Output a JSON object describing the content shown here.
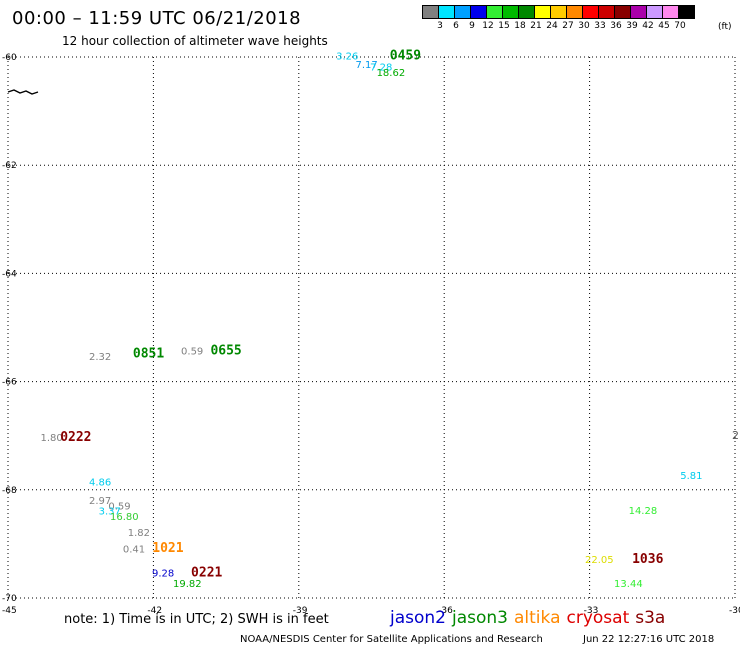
{
  "title": "00:00 – 11:59 UTC 06/21/2018",
  "subtitle": "12 hour collection of altimeter wave heights",
  "legend": {
    "unit": "(ft)",
    "bins": [
      {
        "label": "3",
        "color": "#808080"
      },
      {
        "label": "6",
        "color": "#00e5ff"
      },
      {
        "label": "9",
        "color": "#00a0ff"
      },
      {
        "label": "12",
        "color": "#0000ee"
      },
      {
        "label": "15",
        "color": "#33ee33"
      },
      {
        "label": "18",
        "color": "#00bb00"
      },
      {
        "label": "21",
        "color": "#008800"
      },
      {
        "label": "24",
        "color": "#ffff00"
      },
      {
        "label": "27",
        "color": "#ffcc00"
      },
      {
        "label": "30",
        "color": "#ff8800"
      },
      {
        "label": "33",
        "color": "#ff0000"
      },
      {
        "label": "36",
        "color": "#cc0000"
      },
      {
        "label": "39",
        "color": "#880000"
      },
      {
        "label": "42",
        "color": "#aa00aa"
      },
      {
        "label": "45",
        "color": "#cc99ff"
      },
      {
        "label": "70",
        "color": "#ff88ee"
      },
      {
        "label": "",
        "color": "#000000"
      }
    ]
  },
  "footer": {
    "note": "note: 1) Time is in UTC; 2) SWH is in feet",
    "missions": [
      {
        "name": "jason2",
        "color": "#0000cc"
      },
      {
        "name": "jason3",
        "color": "#008800"
      },
      {
        "name": "altika",
        "color": "#ff8800"
      },
      {
        "name": "cryosat",
        "color": "#dd0000"
      },
      {
        "name": "s3a",
        "color": "#880000"
      }
    ],
    "credit": "NOAA/NESDIS Center for Satellite Applications and Research",
    "timestamp": "Jun 22 12:27:16 UTC 2018"
  },
  "edge_label": "2",
  "chart_data": {
    "type": "scatter",
    "title": "00:00 – 11:59 UTC 06/21/2018",
    "subtitle": "12 hour collection of altimeter wave heights",
    "xlim": [
      -45,
      -30
    ],
    "ylim": [
      -70,
      -60
    ],
    "x_ticks": [
      {
        "value": -45,
        "label": "-45"
      },
      {
        "value": -42,
        "label": "-42"
      },
      {
        "value": -39,
        "label": "-39"
      },
      {
        "value": -36,
        "label": "-36"
      },
      {
        "value": -33,
        "label": "-33"
      },
      {
        "value": -30,
        "label": "-30"
      }
    ],
    "y_ticks": [
      {
        "value": -60,
        "label": "-60"
      },
      {
        "value": -62,
        "label": "-62"
      },
      {
        "value": -64,
        "label": "-64"
      },
      {
        "value": -66,
        "label": "-66"
      },
      {
        "value": -68,
        "label": "-68"
      },
      {
        "value": -70,
        "label": "-70"
      }
    ],
    "grid": true,
    "wave_heights": [
      {
        "x": -38.0,
        "y": -60.05,
        "value": "3.26",
        "color": "#00ccee"
      },
      {
        "x": -37.6,
        "y": -60.2,
        "value": "7.17",
        "color": "#0099ee"
      },
      {
        "x": -37.3,
        "y": -60.25,
        "value": "7.28",
        "color": "#00ccee"
      },
      {
        "x": -37.1,
        "y": -60.35,
        "value": "18.62",
        "color": "#00aa00"
      },
      {
        "x": -43.1,
        "y": -65.6,
        "value": "2.32",
        "color": "#808080"
      },
      {
        "x": -41.2,
        "y": -65.5,
        "value": "0.59",
        "color": "#808080"
      },
      {
        "x": -44.1,
        "y": -67.1,
        "value": "1.80",
        "color": "#808080"
      },
      {
        "x": -43.1,
        "y": -67.92,
        "value": "4.86",
        "color": "#00ccee"
      },
      {
        "x": -43.1,
        "y": -68.26,
        "value": "2.97",
        "color": "#808080"
      },
      {
        "x": -42.7,
        "y": -68.36,
        "value": "0.59",
        "color": "#808080"
      },
      {
        "x": -42.9,
        "y": -68.46,
        "value": "3.37",
        "color": "#00ccee"
      },
      {
        "x": -42.6,
        "y": -68.56,
        "value": "16.80",
        "color": "#33cc33"
      },
      {
        "x": -42.3,
        "y": -68.85,
        "value": "1.82",
        "color": "#808080"
      },
      {
        "x": -42.4,
        "y": -69.16,
        "value": "0.41",
        "color": "#808080"
      },
      {
        "x": -41.8,
        "y": -69.6,
        "value": "9.28",
        "color": "#0000cc"
      },
      {
        "x": -41.3,
        "y": -69.8,
        "value": "19.82",
        "color": "#00aa00"
      },
      {
        "x": -30.9,
        "y": -67.8,
        "value": "5.81",
        "color": "#00ccee"
      },
      {
        "x": -31.9,
        "y": -68.45,
        "value": "14.28",
        "color": "#33ee33"
      },
      {
        "x": -32.8,
        "y": -69.35,
        "value": "22.05",
        "color": "#dddd00"
      },
      {
        "x": -32.2,
        "y": -69.8,
        "value": "13.44",
        "color": "#33ee33"
      }
    ],
    "pass_times": [
      {
        "x": -36.8,
        "y": -60.05,
        "label": "0459",
        "color": "#008800"
      },
      {
        "x": -42.1,
        "y": -65.55,
        "label": "0851",
        "color": "#008800"
      },
      {
        "x": -40.5,
        "y": -65.5,
        "label": "0655",
        "color": "#008800"
      },
      {
        "x": -43.6,
        "y": -67.1,
        "label": "0222",
        "color": "#880000"
      },
      {
        "x": -41.7,
        "y": -69.15,
        "label": "1021",
        "color": "#ff8800"
      },
      {
        "x": -40.9,
        "y": -69.6,
        "label": "0221",
        "color": "#880000"
      },
      {
        "x": -31.8,
        "y": -69.35,
        "label": "1036",
        "color": "#880000"
      }
    ],
    "coastline_label": "land"
  }
}
